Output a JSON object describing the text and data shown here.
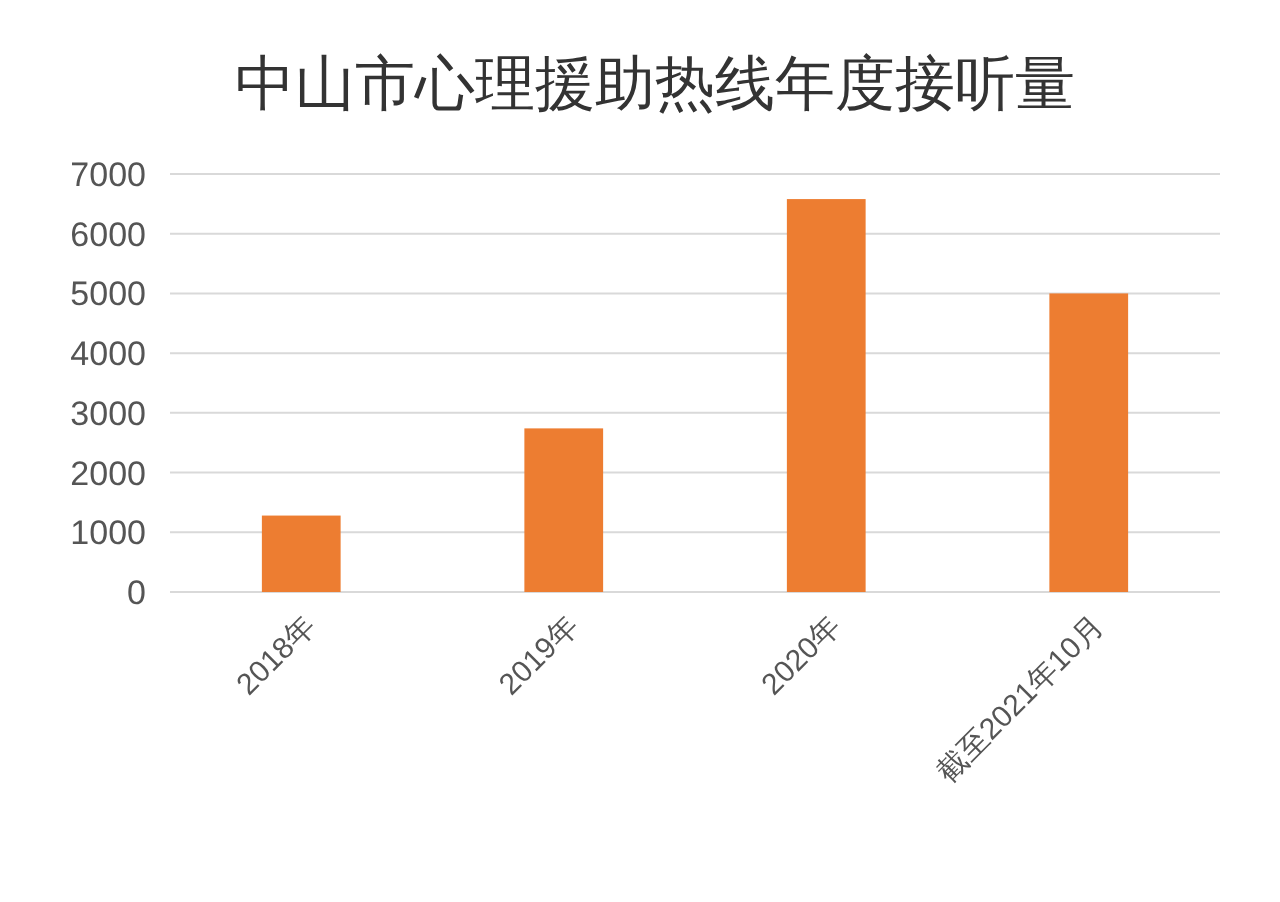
{
  "chart_data": {
    "type": "bar",
    "title": "中山市心理援助热线年度接听量",
    "categories": [
      "2018年",
      "2019年",
      "2020年",
      "截至2021年10月"
    ],
    "values": [
      1280,
      2740,
      6580,
      5000
    ],
    "color": "#ed7d31",
    "ylim": [
      0,
      7000
    ],
    "yticks": [
      0,
      1000,
      2000,
      3000,
      4000,
      5000,
      6000,
      7000
    ],
    "grid": "y"
  }
}
